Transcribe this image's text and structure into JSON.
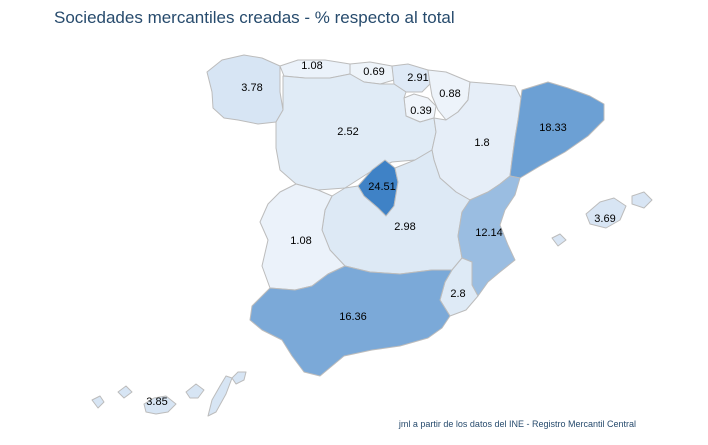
{
  "title": "Sociedades mercantiles creadas - % respecto al total",
  "credit": "jml a partir de los datos del INE - Registro Mercantil Central",
  "colors": {
    "title": "#274b6d",
    "low": "#f3f7fc",
    "high": "#3f82c6",
    "border": "#bcbcbc"
  },
  "chart_data": {
    "type": "choropleth",
    "max_value": 24.51,
    "regions": [
      {
        "id": "galicia",
        "value": "3.78"
      },
      {
        "id": "asturias",
        "value": "1.08"
      },
      {
        "id": "cantabria",
        "value": "0.69"
      },
      {
        "id": "pais-vasco",
        "value": "2.91"
      },
      {
        "id": "navarra",
        "value": "0.88"
      },
      {
        "id": "la-rioja",
        "value": "0.39"
      },
      {
        "id": "castilla-y-leon",
        "value": "2.52"
      },
      {
        "id": "aragon",
        "value": "1.8"
      },
      {
        "id": "cataluna",
        "value": "18.33"
      },
      {
        "id": "madrid",
        "value": "24.51"
      },
      {
        "id": "castilla-la-mancha",
        "value": "2.98"
      },
      {
        "id": "extremadura",
        "value": "1.08"
      },
      {
        "id": "comunidad-valenciana",
        "value": "12.14"
      },
      {
        "id": "baleares",
        "value": "3.69"
      },
      {
        "id": "murcia",
        "value": "2.8"
      },
      {
        "id": "andalucia",
        "value": "16.36"
      },
      {
        "id": "canarias",
        "value": "3.85"
      }
    ]
  }
}
